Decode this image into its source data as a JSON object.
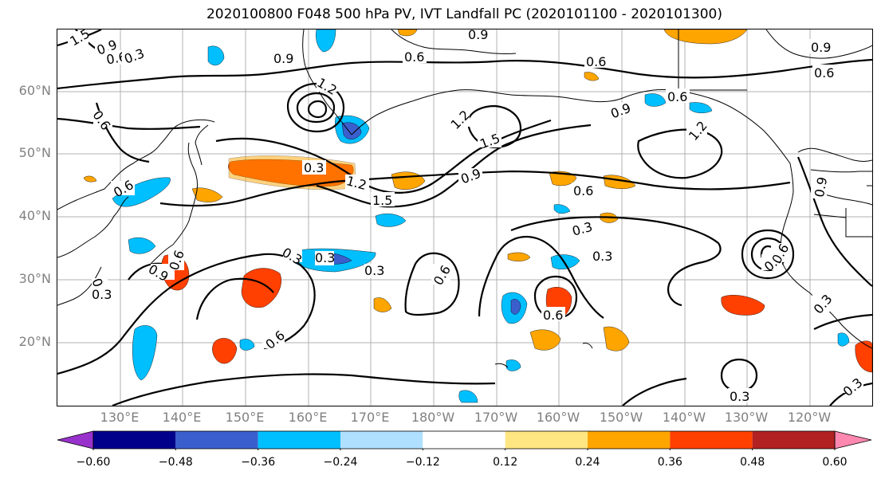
{
  "title": "2020100800 F048 500 hPa PV, IVT Landfall PC (2020101100 - 2020101300)",
  "lat_labels": [
    "60°N",
    "50°N",
    "40°N",
    "30°N",
    "20°N"
  ],
  "lon_labels": [
    "130°E",
    "140°E",
    "150°E",
    "160°E",
    "170°E",
    "180°W",
    "170°W",
    "160°W",
    "150°W",
    "140°W",
    "130°W",
    "120°W"
  ],
  "colorbar": {
    "ticks": [
      "−0.60",
      "−0.48",
      "−0.36",
      "−0.24",
      "−0.12",
      "0.12",
      "0.24",
      "0.36",
      "0.48",
      "0.60"
    ],
    "colors": [
      "#9932cc",
      "#00008b",
      "#3a5fcd",
      "#00bfff",
      "#b0e0ff",
      "#ffffff",
      "#ffe682",
      "#ffa500",
      "#ff4000",
      "#b22222",
      "#ff88b0"
    ]
  },
  "contour_labels": [
    "1.5",
    "0.9",
    "0.6",
    "0.3",
    "1.2",
    "0.9",
    "0.6",
    "0.9",
    "0.9",
    "0.6",
    "0.6",
    "1.2",
    "1.5",
    "0.9",
    "1.2",
    "0.6",
    "0.3",
    "0.9",
    "1.2",
    "1.5",
    "0.9",
    "0.6",
    "0.3",
    "0.6",
    "0.6",
    "0.3",
    "0.9",
    "0.6",
    "0.3",
    "0.3",
    "0.6",
    "0.3",
    "0.6",
    "0.3",
    "0.6",
    "0.3",
    "0.3",
    "0.9",
    "0.6",
    "0.3",
    "0.3"
  ]
}
